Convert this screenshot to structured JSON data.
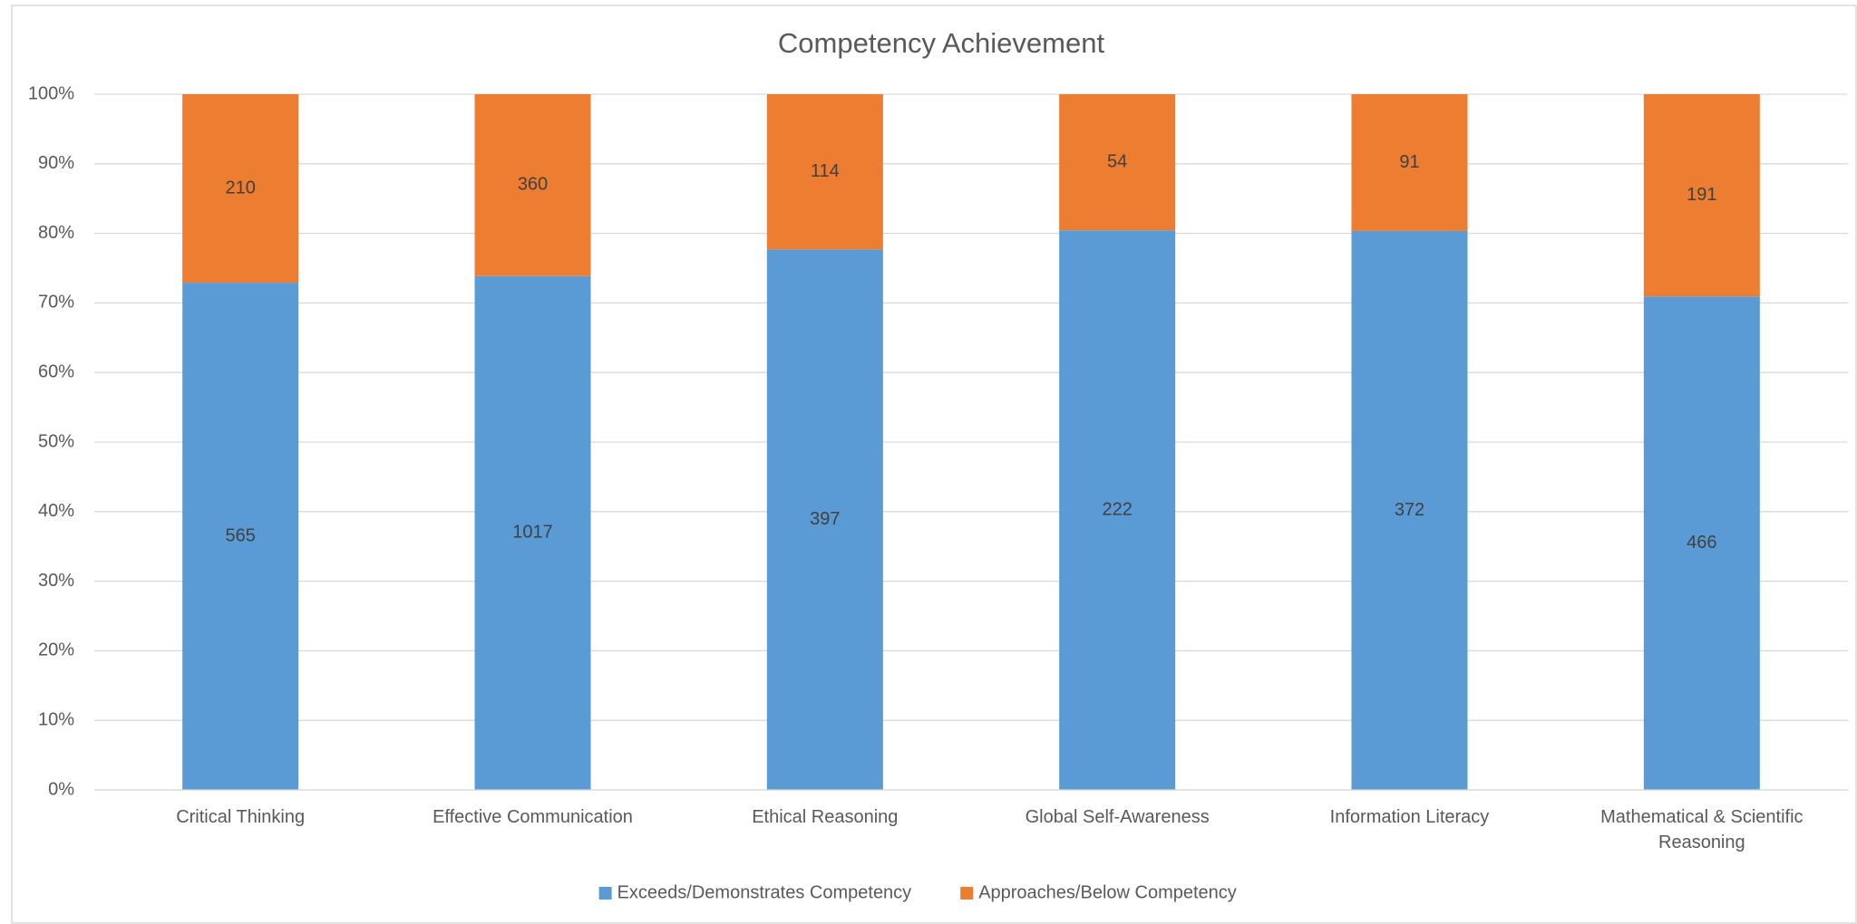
{
  "chart_data": {
    "type": "bar",
    "stack": "percent",
    "title": "Competency Achievement",
    "categories": [
      "Critical Thinking",
      "Effective Communication",
      "Ethical Reasoning",
      "Global Self-Awareness",
      "Information Literacy",
      "Mathematical & Scientific Reasoning"
    ],
    "series": [
      {
        "name": "Exceeds/Demonstrates Competency",
        "color": "#5b9bd5",
        "values": [
          565,
          1017,
          397,
          222,
          372,
          466
        ]
      },
      {
        "name": "Approaches/Below Competency",
        "color": "#ed7d31",
        "values": [
          210,
          360,
          114,
          54,
          91,
          191
        ]
      }
    ],
    "ylim": [
      0,
      100
    ],
    "yticks": [
      {
        "value": 0,
        "label": "0%"
      },
      {
        "value": 10,
        "label": "10%"
      },
      {
        "value": 20,
        "label": "20%"
      },
      {
        "value": 30,
        "label": "30%"
      },
      {
        "value": 40,
        "label": "40%"
      },
      {
        "value": 50,
        "label": "50%"
      },
      {
        "value": 60,
        "label": "60%"
      },
      {
        "value": 70,
        "label": "70%"
      },
      {
        "value": 80,
        "label": "80%"
      },
      {
        "value": 90,
        "label": "90%"
      },
      {
        "value": 100,
        "label": "100%"
      }
    ],
    "grid": true,
    "legend": "bottom"
  }
}
